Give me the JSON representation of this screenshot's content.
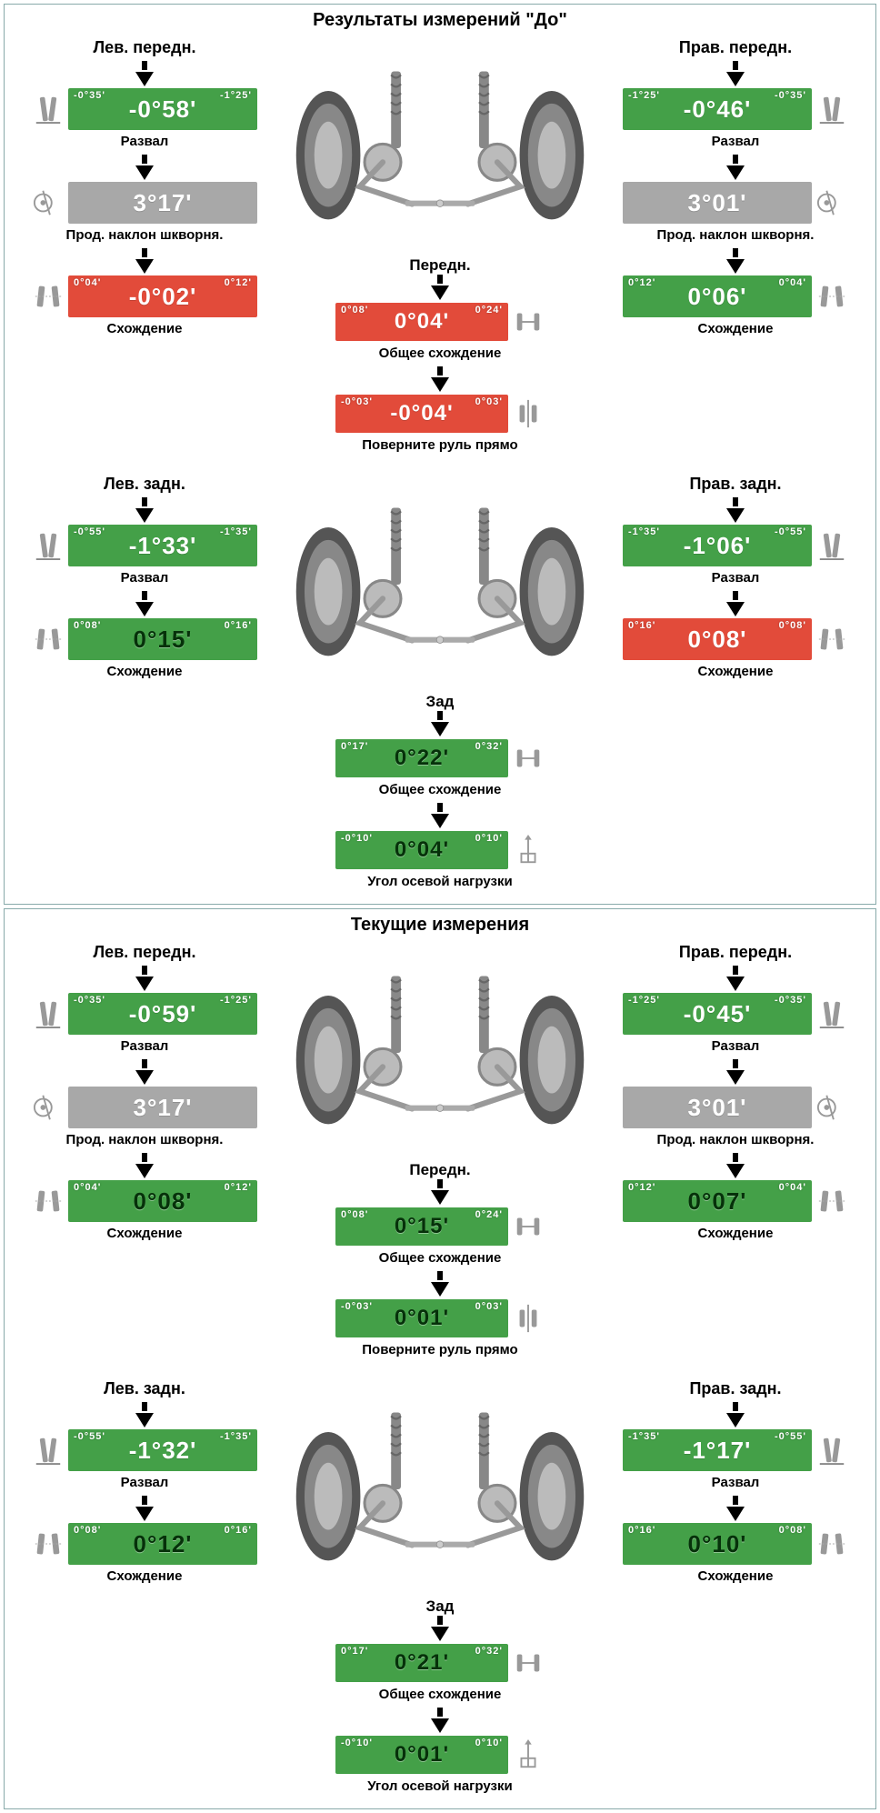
{
  "colors": {
    "green": "#44a048",
    "gray": "#a8a8a8",
    "red": "#e24b3a",
    "text_dark": "#06310a",
    "text_white": "#ffffff"
  },
  "panels": [
    {
      "title": "Результаты измерений \"До\"",
      "front": {
        "left_title": "Лев. передн.",
        "right_title": "Прав. передн.",
        "center_title": "Передн.",
        "left": [
          {
            "label": "Развал",
            "value": "-0°58'",
            "lim_l": "-0°35'",
            "lim_r": "-1°25'",
            "status": "green",
            "icon": "camber"
          },
          {
            "label": "Прод. наклон шкворня.",
            "value": "3°17'",
            "lim_l": "",
            "lim_r": "",
            "status": "gray",
            "icon": "caster"
          },
          {
            "label": "Схождение",
            "value": "-0°02'",
            "lim_l": "0°04'",
            "lim_r": "0°12'",
            "status": "red",
            "icon": "toe"
          }
        ],
        "right": [
          {
            "label": "Развал",
            "value": "-0°46'",
            "lim_l": "-1°25'",
            "lim_r": "-0°35'",
            "status": "green",
            "icon": "camber"
          },
          {
            "label": "Прод. наклон шкворня.",
            "value": "3°01'",
            "lim_l": "",
            "lim_r": "",
            "status": "gray",
            "icon": "caster"
          },
          {
            "label": "Схождение",
            "value": "0°06'",
            "lim_l": "0°12'",
            "lim_r": "0°04'",
            "status": "green",
            "icon": "toe"
          }
        ],
        "center": [
          {
            "label": "Общее схождение",
            "value": "0°04'",
            "lim_l": "0°08'",
            "lim_r": "0°24'",
            "status": "red",
            "icon": "total-toe"
          },
          {
            "label": "Поверните руль прямо",
            "value": "-0°04'",
            "lim_l": "-0°03'",
            "lim_r": "0°03'",
            "status": "red",
            "icon": "steer"
          }
        ]
      },
      "rear": {
        "left_title": "Лев. задн.",
        "right_title": "Прав. задн.",
        "center_title": "Зад",
        "left": [
          {
            "label": "Развал",
            "value": "-1°33'",
            "lim_l": "-0°55'",
            "lim_r": "-1°35'",
            "status": "green",
            "icon": "camber"
          },
          {
            "label": "Схождение",
            "value": "0°15'",
            "lim_l": "0°08'",
            "lim_r": "0°16'",
            "status": "green",
            "icon": "toe",
            "darktext": true
          }
        ],
        "right": [
          {
            "label": "Развал",
            "value": "-1°06'",
            "lim_l": "-1°35'",
            "lim_r": "-0°55'",
            "status": "green",
            "icon": "camber"
          },
          {
            "label": "Схождение",
            "value": "0°08'",
            "lim_l": "0°16'",
            "lim_r": "0°08'",
            "status": "red",
            "icon": "toe"
          }
        ],
        "center": [
          {
            "label": "Общее схождение",
            "value": "0°22'",
            "lim_l": "0°17'",
            "lim_r": "0°32'",
            "status": "green",
            "icon": "total-toe",
            "darktext": true
          },
          {
            "label": "Угол осевой нагрузки",
            "value": "0°04'",
            "lim_l": "-0°10'",
            "lim_r": "0°10'",
            "status": "green",
            "icon": "thrust",
            "darktext": true
          }
        ]
      }
    },
    {
      "title": "Текущие измерения",
      "front": {
        "left_title": "Лев. передн.",
        "right_title": "Прав. передн.",
        "center_title": "Передн.",
        "left": [
          {
            "label": "Развал",
            "value": "-0°59'",
            "lim_l": "-0°35'",
            "lim_r": "-1°25'",
            "status": "green",
            "icon": "camber"
          },
          {
            "label": "Прод. наклон шкворня.",
            "value": "3°17'",
            "lim_l": "",
            "lim_r": "",
            "status": "gray",
            "icon": "caster"
          },
          {
            "label": "Схождение",
            "value": "0°08'",
            "lim_l": "0°04'",
            "lim_r": "0°12'",
            "status": "green",
            "icon": "toe",
            "darktext": true
          }
        ],
        "right": [
          {
            "label": "Развал",
            "value": "-0°45'",
            "lim_l": "-1°25'",
            "lim_r": "-0°35'",
            "status": "green",
            "icon": "camber"
          },
          {
            "label": "Прод. наклон шкворня.",
            "value": "3°01'",
            "lim_l": "",
            "lim_r": "",
            "status": "gray",
            "icon": "caster"
          },
          {
            "label": "Схождение",
            "value": "0°07'",
            "lim_l": "0°12'",
            "lim_r": "0°04'",
            "status": "green",
            "icon": "toe",
            "darktext": true
          }
        ],
        "center": [
          {
            "label": "Общее схождение",
            "value": "0°15'",
            "lim_l": "0°08'",
            "lim_r": "0°24'",
            "status": "green",
            "icon": "total-toe",
            "darktext": true
          },
          {
            "label": "Поверните руль прямо",
            "value": "0°01'",
            "lim_l": "-0°03'",
            "lim_r": "0°03'",
            "status": "green",
            "icon": "steer",
            "darktext": true
          }
        ]
      },
      "rear": {
        "left_title": "Лев. задн.",
        "right_title": "Прав. задн.",
        "center_title": "Зад",
        "left": [
          {
            "label": "Развал",
            "value": "-1°32'",
            "lim_l": "-0°55'",
            "lim_r": "-1°35'",
            "status": "green",
            "icon": "camber"
          },
          {
            "label": "Схождение",
            "value": "0°12'",
            "lim_l": "0°08'",
            "lim_r": "0°16'",
            "status": "green",
            "icon": "toe",
            "darktext": true
          }
        ],
        "right": [
          {
            "label": "Развал",
            "value": "-1°17'",
            "lim_l": "-1°35'",
            "lim_r": "-0°55'",
            "status": "green",
            "icon": "camber"
          },
          {
            "label": "Схождение",
            "value": "0°10'",
            "lim_l": "0°16'",
            "lim_r": "0°08'",
            "status": "green",
            "icon": "toe",
            "darktext": true
          }
        ],
        "center": [
          {
            "label": "Общее схождение",
            "value": "0°21'",
            "lim_l": "0°17'",
            "lim_r": "0°32'",
            "status": "green",
            "icon": "total-toe",
            "darktext": true
          },
          {
            "label": "Угол осевой нагрузки",
            "value": "0°01'",
            "lim_l": "-0°10'",
            "lim_r": "0°10'",
            "status": "green",
            "icon": "thrust",
            "darktext": true
          }
        ]
      }
    }
  ]
}
